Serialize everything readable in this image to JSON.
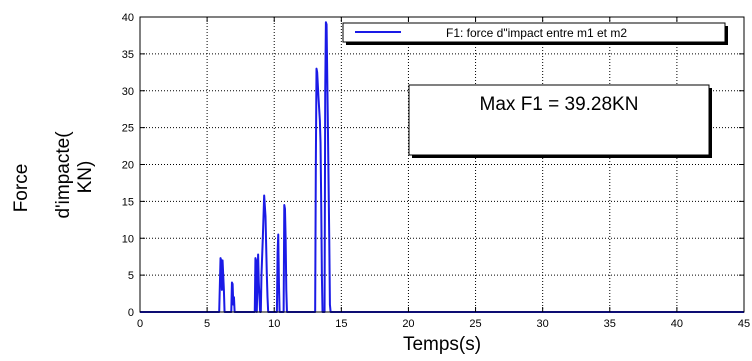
{
  "chart_data": {
    "type": "line",
    "title": "",
    "xlabel": "Temps(s)",
    "ylabel_lines": [
      "Force",
      "d'impacte(",
      "KN)"
    ],
    "xlim": [
      0,
      45
    ],
    "ylim": [
      0,
      40
    ],
    "xticks": [
      0,
      5,
      10,
      15,
      20,
      25,
      30,
      35,
      40,
      45
    ],
    "yticks": [
      0,
      5,
      10,
      15,
      20,
      25,
      30,
      35,
      40
    ],
    "grid": true,
    "legend": {
      "position": "top-right",
      "entries": [
        "F1: force d\"impact entre m1 et m2"
      ]
    },
    "annotation": "Max F1 = 39.28KN",
    "colors": {
      "series": "#1a1ae6",
      "grid": "#000000",
      "background": "#ffffff"
    },
    "series": [
      {
        "name": "F1: force d\"impact entre m1 et m2",
        "x": [
          0,
          5.9,
          6.0,
          6.05,
          6.1,
          6.15,
          6.25,
          6.3,
          6.8,
          6.85,
          6.9,
          6.95,
          7.0,
          7.05,
          8.55,
          8.6,
          8.65,
          8.7,
          8.8,
          8.85,
          8.9,
          8.95,
          9.0,
          9.05,
          9.15,
          9.25,
          9.35,
          9.45,
          9.5,
          9.55,
          10.2,
          10.25,
          10.3,
          10.35,
          10.4,
          10.7,
          10.75,
          10.8,
          10.85,
          10.9,
          10.95,
          13.05,
          13.1,
          13.15,
          13.2,
          13.3,
          13.4,
          13.45,
          13.5,
          13.55,
          13.6,
          13.75,
          13.8,
          13.85,
          13.9,
          14.0,
          14.1,
          14.15,
          14.2,
          45
        ],
        "y": [
          0,
          0,
          7.3,
          7.0,
          3.0,
          7.0,
          3.0,
          0,
          0,
          4.0,
          3.8,
          1.0,
          2.0,
          0,
          0,
          7.3,
          7.0,
          0,
          7.8,
          4.0,
          2.0,
          0,
          0,
          5.0,
          10.0,
          15.8,
          13.0,
          5.0,
          2.0,
          0,
          0,
          8.0,
          10.5,
          4.0,
          0,
          0,
          14.5,
          14.0,
          10.0,
          3.0,
          0,
          0,
          20.0,
          33.0,
          32.5,
          29.0,
          26.0,
          23.0,
          15.0,
          5.0,
          0,
          0,
          30.0,
          39.28,
          39.0,
          25.0,
          10.0,
          1.0,
          0,
          0
        ]
      }
    ]
  }
}
